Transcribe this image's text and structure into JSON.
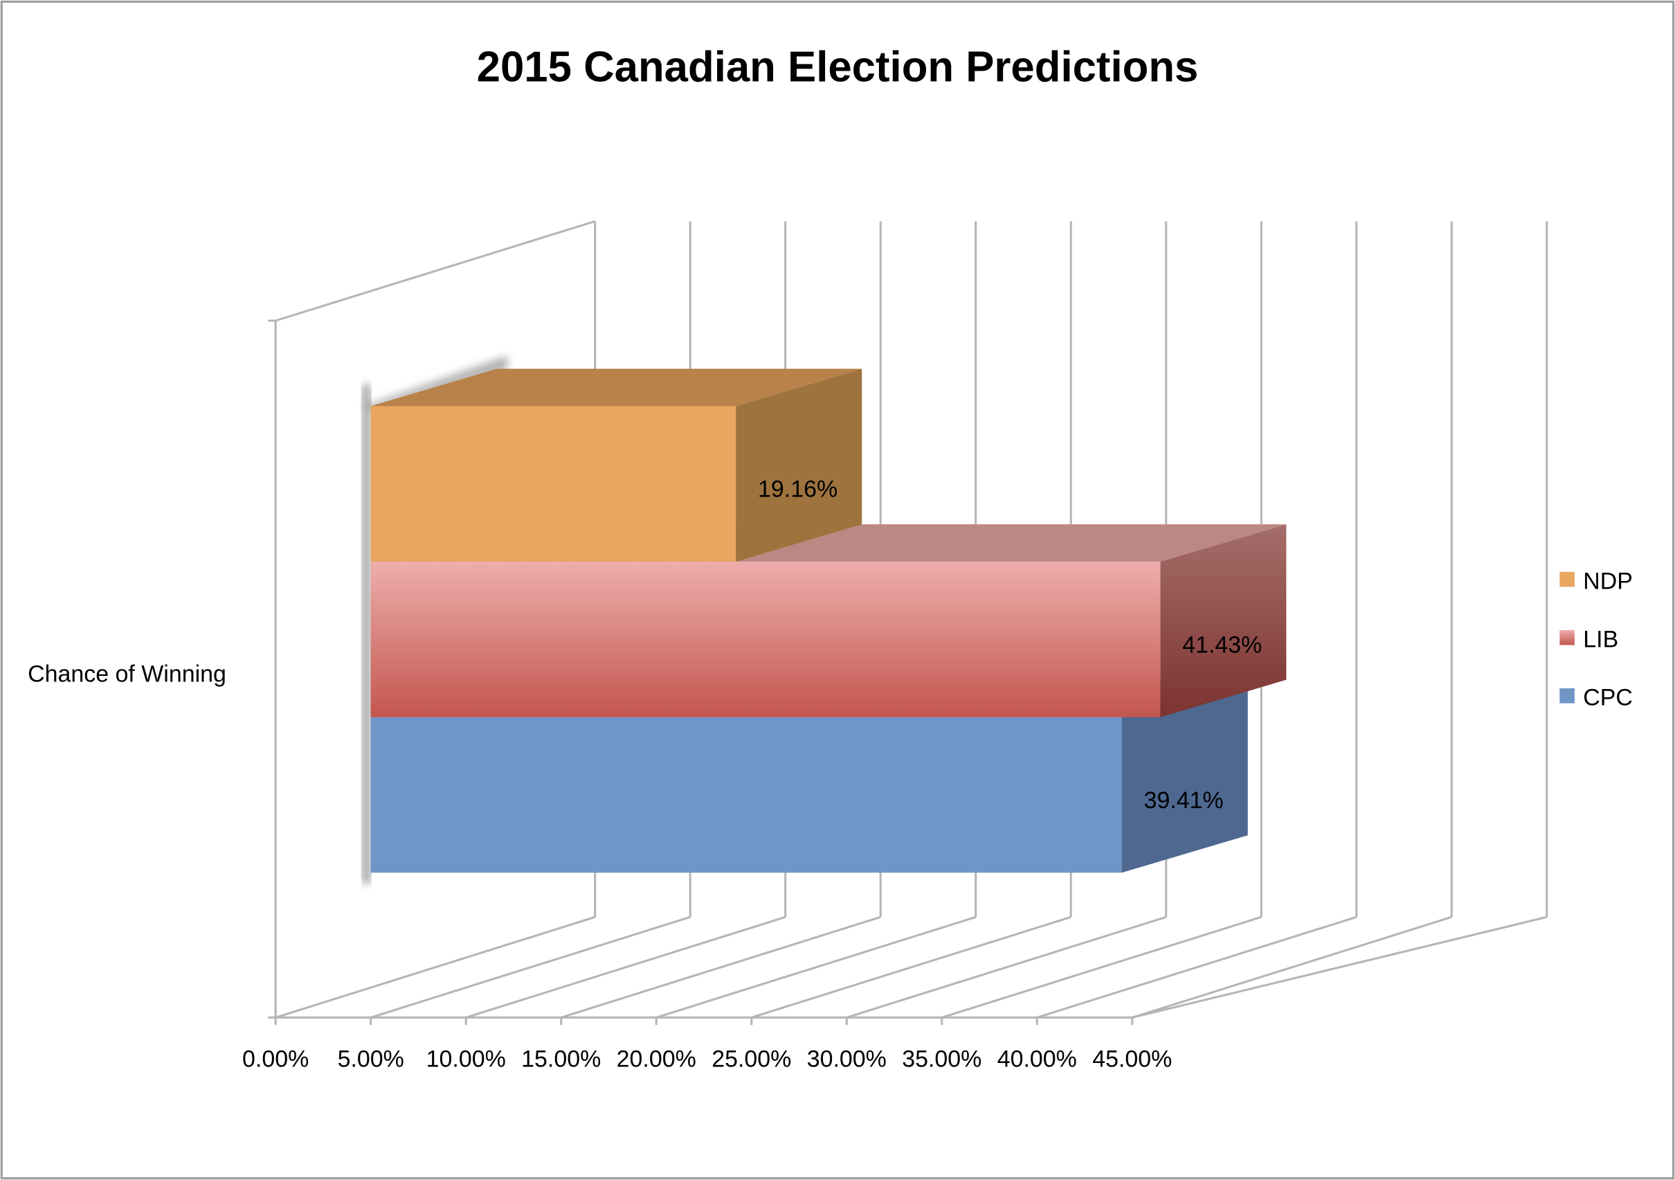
{
  "chart_data": {
    "type": "bar",
    "orientation": "horizontal",
    "style": "3d-clustered",
    "title": "2015 Canadian Election Predictions",
    "categories": [
      "Chance of Winning"
    ],
    "series": [
      {
        "name": "NDP",
        "values": [
          19.16
        ],
        "label": "19.16%",
        "color": "#E8A660"
      },
      {
        "name": "LIB",
        "values": [
          41.43
        ],
        "label": "41.43%",
        "color": "#D9736C"
      },
      {
        "name": "CPC",
        "values": [
          39.41
        ],
        "label": "39.41%",
        "color": "#7095C7"
      }
    ],
    "xlim": [
      0,
      45
    ],
    "x_ticks": [
      "0.00%",
      "5.00%",
      "10.00%",
      "15.00%",
      "20.00%",
      "25.00%",
      "30.00%",
      "35.00%",
      "40.00%",
      "45.00%"
    ],
    "grid": true,
    "legend": "right"
  }
}
